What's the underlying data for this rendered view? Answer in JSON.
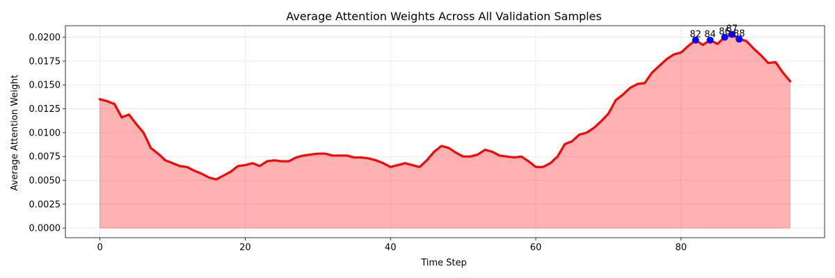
{
  "chart_data": {
    "type": "area",
    "title": "Average Attention Weights Across All Validation Samples",
    "xlabel": "Time Step",
    "ylabel": "Average Attention Weight",
    "xlim": [
      -4.75,
      99.75
    ],
    "ylim": [
      -0.00101,
      0.02121
    ],
    "xticks": [
      0,
      20,
      40,
      60,
      80
    ],
    "xtick_labels": [
      "0",
      "20",
      "40",
      "60",
      "80"
    ],
    "yticks": [
      0.0,
      0.0025,
      0.005,
      0.0075,
      0.01,
      0.0125,
      0.015,
      0.0175,
      0.02
    ],
    "ytick_labels": [
      "0.0000",
      "0.0025",
      "0.0050",
      "0.0075",
      "0.0100",
      "0.0125",
      "0.0150",
      "0.0175",
      "0.0200"
    ],
    "grid": true,
    "line_color": "#ff0000",
    "fill_color": "#ff0000",
    "fill_alpha": 0.3,
    "marker_color": "#0000ff",
    "x": [
      0,
      1,
      2,
      3,
      4,
      5,
      6,
      7,
      8,
      9,
      10,
      11,
      12,
      13,
      14,
      15,
      16,
      17,
      18,
      19,
      20,
      21,
      22,
      23,
      24,
      25,
      26,
      27,
      28,
      29,
      30,
      31,
      32,
      33,
      34,
      35,
      36,
      37,
      38,
      39,
      40,
      41,
      42,
      43,
      44,
      45,
      46,
      47,
      48,
      49,
      50,
      51,
      52,
      53,
      54,
      55,
      56,
      57,
      58,
      59,
      60,
      61,
      62,
      63,
      64,
      65,
      66,
      67,
      68,
      69,
      70,
      71,
      72,
      73,
      74,
      75,
      76,
      77,
      78,
      79,
      80,
      81,
      82,
      83,
      84,
      85,
      86,
      87,
      88,
      89,
      90,
      91,
      92,
      93,
      94,
      95
    ],
    "y": [
      0.0135,
      0.0133,
      0.013,
      0.0116,
      0.0119,
      0.0109,
      0.01,
      0.0084,
      0.0078,
      0.0071,
      0.0068,
      0.0065,
      0.0064,
      0.006,
      0.0057,
      0.0053,
      0.0051,
      0.0055,
      0.0059,
      0.0065,
      0.0066,
      0.0068,
      0.0065,
      0.007,
      0.0071,
      0.007,
      0.007,
      0.0074,
      0.0076,
      0.0077,
      0.0078,
      0.0078,
      0.0076,
      0.0076,
      0.0076,
      0.0074,
      0.0074,
      0.0073,
      0.0071,
      0.0068,
      0.0064,
      0.0066,
      0.0068,
      0.0066,
      0.0064,
      0.0071,
      0.008,
      0.0086,
      0.0084,
      0.0079,
      0.0075,
      0.0075,
      0.0077,
      0.0082,
      0.008,
      0.0076,
      0.0075,
      0.0074,
      0.0075,
      0.007,
      0.0064,
      0.0064,
      0.0068,
      0.0075,
      0.0088,
      0.0091,
      0.0098,
      0.01,
      0.0105,
      0.0112,
      0.012,
      0.0134,
      0.014,
      0.0147,
      0.0151,
      0.0152,
      0.0163,
      0.017,
      0.0177,
      0.0182,
      0.0184,
      0.0191,
      0.0197,
      0.0192,
      0.0197,
      0.0193,
      0.02,
      0.0203,
      0.0198,
      0.0196,
      0.0188,
      0.0181,
      0.0173,
      0.0174,
      0.0163,
      0.0154
    ],
    "peaks": [
      {
        "x": 82,
        "y": 0.0197,
        "label": "82"
      },
      {
        "x": 84,
        "y": 0.0197,
        "label": "84"
      },
      {
        "x": 86,
        "y": 0.02,
        "label": "86"
      },
      {
        "x": 87,
        "y": 0.0203,
        "label": "87"
      },
      {
        "x": 88,
        "y": 0.0198,
        "label": "88"
      }
    ]
  }
}
